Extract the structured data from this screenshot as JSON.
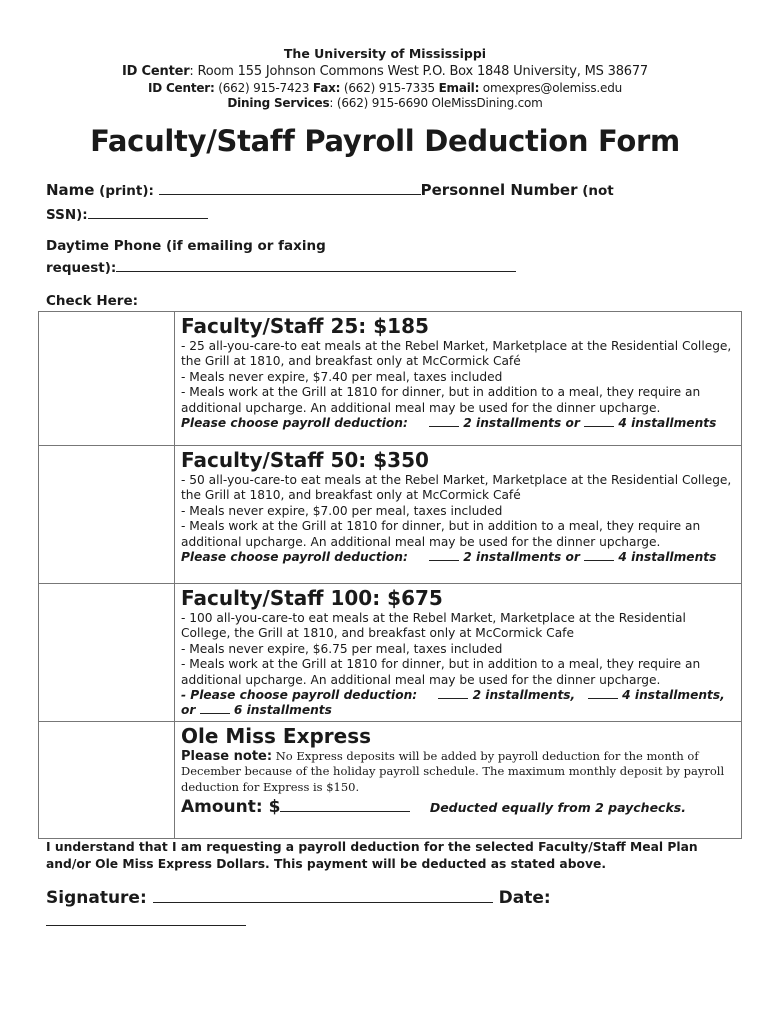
{
  "header": {
    "university": "The University of Mississippi",
    "line1_label": "ID Center",
    "line1_text": ": Room 155 Johnson Commons West P.O. Box 1848 University, MS 38677",
    "line2_label1": "ID Center:",
    "line2_text1": " (662) 915-7423 ",
    "line2_label2": "Fax:",
    "line2_text2": " (662) 915-7335 ",
    "line2_label3": "Email:",
    "line2_text3": " omexpres@olemiss.edu",
    "line3_label": "Dining Services",
    "line3_text": ": (662) 915-6690 OleMissDining.com"
  },
  "title": "Faculty/Staff Payroll Deduction Form",
  "fields": {
    "name_label": "Name",
    "name_hint": " (print): ",
    "personnel_label": "Personnel Number",
    "personnel_hint": " (not",
    "ssn_label": "SSN):",
    "phone_label_1": "Daytime Phone (if emailing or faxing",
    "phone_label_2": "request):",
    "check_here": "Check Here:"
  },
  "plans": [
    {
      "title": "Faculty/Staff 25: $185",
      "lines": [
        "- 25 all-you-care-to eat meals at the Rebel Market, Marketplace at the Residential College, the Grill at 1810, and breakfast only at McCormick Café",
        "- Meals never expire, $7.40 per meal, taxes included",
        "- Meals work at the Grill at 1810 for dinner, but in addition to a meal, they require an additional upcharge. An additional meal may be used for the dinner upcharge."
      ],
      "choose": "Please choose payroll deduction:",
      "opt1": " 2 installments  or ",
      "opt2": " 4 installments"
    },
    {
      "title": "Faculty/Staff 50: $350",
      "lines": [
        "- 50 all-you-care-to eat meals at the Rebel Market, Marketplace at the Residential College, the Grill at 1810, and breakfast only at McCormick Café",
        "- Meals never expire, $7.00 per meal, taxes included",
        "- Meals work at the Grill at 1810 for dinner, but in addition to a meal, they require an additional upcharge. An additional meal may be used for the dinner upcharge."
      ],
      "choose": "Please choose payroll deduction:",
      "opt1": " 2 installments  or ",
      "opt2": " 4 installments"
    },
    {
      "title": "Faculty/Staff 100: $675",
      "lines": [
        "- 100 all-you-care-to eat meals at the Rebel Market, Marketplace at the Residential College, the Grill at 1810, and breakfast only at McCormick Cafe",
        "- Meals never expire, $6.75 per meal, taxes included",
        "- Meals work at the Grill at 1810 for dinner, but in addition to a meal, they require an additional upcharge. An additional meal may be used for the dinner upcharge."
      ],
      "choose": "- Please choose payroll deduction:",
      "opt1": " 2 installments, ",
      "opt2": " 4 installments, or ",
      "opt3": " 6 installments"
    }
  ],
  "express": {
    "title": "Ole Miss Express",
    "note_label": "Please note:",
    "note_text": " No Express deposits will be added by payroll deduction for the month of December because of the holiday payroll schedule. The maximum monthly deposit by payroll deduction for Express is $150.",
    "amount_label": "Amount: $",
    "deducted": "Deducted equally from 2 paychecks."
  },
  "agreement": "I understand that I am requesting a payroll deduction for the selected Faculty/Staff Meal Plan and/or Ole Miss Express Dollars. This payment will be deducted as stated above.",
  "signature_label": "Signature: ",
  "date_label": " Date:"
}
